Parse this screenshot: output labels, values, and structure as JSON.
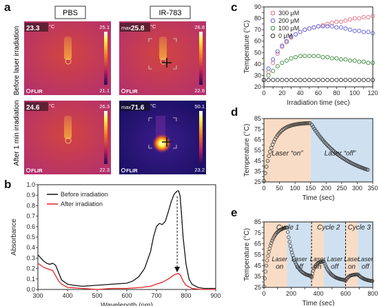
{
  "panels": [
    "a",
    "b",
    "c",
    "d",
    "e"
  ],
  "panel_a": {
    "col_titles": [
      "PBS",
      "IR-783"
    ],
    "row_titles": [
      "Before laser irradiation",
      "After 1 min irradiation"
    ],
    "unit": "°C",
    "brand": "FLIR",
    "max_tag": "max",
    "images": [
      {
        "reading": "23.3",
        "scale_max": "25.1",
        "scale_min": "21.1",
        "has_max": false,
        "style": "warm"
      },
      {
        "reading": "25.8",
        "scale_max": "26.8",
        "scale_min": "22.8",
        "has_max": true,
        "style": "warm"
      },
      {
        "reading": "24.6",
        "scale_max": "26.3",
        "scale_min": "22.3",
        "has_max": false,
        "style": "warm"
      },
      {
        "reading": "71.6",
        "scale_max": "50.1",
        "scale_min": "23.2",
        "has_max": true,
        "style": "hot"
      }
    ]
  },
  "colors": {
    "black": "#111111",
    "red": "#e32222",
    "c300": "#e06a7a",
    "c200": "#5b5fd6",
    "c100": "#3a8a3a",
    "c0": "#333333",
    "laser_on": "#f8dcc6",
    "laser_off": "#cfe0f0",
    "on_text": "#d40000",
    "off_text": "#1a6fc4"
  },
  "chart_data": [
    {
      "panel": "b",
      "type": "line",
      "xlabel": "Wavelength (nm)",
      "ylabel": "Absorbance",
      "xlim": [
        300,
        900
      ],
      "ylim": [
        0,
        1.0
      ],
      "xticks": [
        300,
        400,
        500,
        600,
        700,
        800,
        900
      ],
      "yticks": [
        0.0,
        0.1,
        0.2,
        0.3,
        0.4,
        0.5,
        0.6,
        0.7,
        0.8,
        0.9,
        1.0
      ],
      "series": [
        {
          "name": "Before irradiation",
          "color": "#111111",
          "x": [
            300,
            310,
            320,
            330,
            340,
            350,
            360,
            370,
            380,
            400,
            420,
            450,
            500,
            550,
            600,
            620,
            640,
            660,
            680,
            690,
            700,
            710,
            720,
            730,
            740,
            750,
            760,
            770,
            775,
            780,
            785,
            790,
            800,
            810,
            820,
            840,
            860,
            880,
            900
          ],
          "y": [
            0.33,
            0.3,
            0.27,
            0.25,
            0.24,
            0.25,
            0.23,
            0.16,
            0.09,
            0.05,
            0.04,
            0.03,
            0.04,
            0.05,
            0.06,
            0.08,
            0.12,
            0.2,
            0.36,
            0.5,
            0.6,
            0.63,
            0.62,
            0.65,
            0.74,
            0.84,
            0.91,
            0.94,
            0.94,
            0.89,
            0.7,
            0.5,
            0.24,
            0.1,
            0.05,
            0.02,
            0.01,
            0.01,
            0.01
          ]
        },
        {
          "name": "After irradiation",
          "color": "#e32222",
          "x": [
            300,
            310,
            320,
            330,
            340,
            350,
            360,
            370,
            380,
            400,
            450,
            500,
            550,
            600,
            650,
            680,
            700,
            720,
            740,
            750,
            760,
            770,
            775,
            780,
            790,
            800,
            820,
            850,
            900
          ],
          "y": [
            0.25,
            0.23,
            0.21,
            0.2,
            0.19,
            0.18,
            0.13,
            0.08,
            0.05,
            0.02,
            0.01,
            0.0,
            0.01,
            0.01,
            0.02,
            0.03,
            0.05,
            0.07,
            0.1,
            0.12,
            0.14,
            0.15,
            0.15,
            0.14,
            0.08,
            0.04,
            0.01,
            0.0,
            0.0
          ]
        }
      ],
      "annotation": "arrow 770 nm"
    },
    {
      "panel": "c",
      "type": "scatter",
      "xlabel": "Irradiation time (sec)",
      "ylabel": "Temperature (°C)",
      "xlim": [
        0,
        120
      ],
      "ylim": [
        20,
        90
      ],
      "xticks": [
        0,
        10,
        20,
        30,
        40,
        50,
        60,
        70,
        80,
        90,
        100,
        110,
        120
      ],
      "yticks": [
        20,
        25,
        30,
        35,
        40,
        45,
        50,
        55,
        60,
        65,
        70,
        75,
        80,
        85,
        90
      ],
      "x": [
        0,
        5,
        10,
        15,
        20,
        25,
        30,
        35,
        40,
        45,
        50,
        55,
        60,
        65,
        70,
        75,
        80,
        85,
        90,
        95,
        100,
        105,
        110,
        115,
        120
      ],
      "series": [
        {
          "name": "300 μM",
          "color": "#e06a7a",
          "values": [
            26,
            33,
            41,
            49,
            55,
            59,
            63,
            66,
            68,
            70,
            71,
            72,
            73,
            74,
            75,
            76,
            77,
            77,
            78,
            79,
            80,
            80,
            81,
            81,
            82
          ]
        },
        {
          "name": "200 μM",
          "color": "#5b5fd6",
          "values": [
            26,
            36,
            44,
            51,
            56,
            60,
            64,
            66,
            68,
            70,
            71,
            72,
            73,
            73,
            73,
            73,
            72,
            72,
            71,
            70,
            69,
            69,
            68,
            68,
            67
          ]
        },
        {
          "name": "100 μM",
          "color": "#3a8a3a",
          "values": [
            26,
            30,
            34,
            38,
            41,
            43,
            45,
            46,
            47,
            47,
            47,
            47,
            47,
            46,
            46,
            45,
            45,
            44,
            44,
            43,
            43,
            42,
            42,
            41,
            41
          ]
        },
        {
          "name": "0 μM",
          "color": "#333333",
          "values": [
            26,
            26,
            26,
            26,
            26,
            26,
            26,
            26,
            26,
            26,
            26,
            26,
            26,
            26,
            26,
            26,
            26,
            26,
            26,
            26,
            26,
            26,
            26,
            26,
            26
          ]
        }
      ]
    },
    {
      "panel": "d",
      "type": "scatter",
      "xlabel": "Time (sec)",
      "ylabel": "Temperature (°C)",
      "xlim": [
        0,
        350
      ],
      "ylim": [
        25,
        85
      ],
      "xticks": [
        0,
        50,
        100,
        150,
        200,
        250,
        300,
        350
      ],
      "yticks": [
        25,
        30,
        35,
        40,
        45,
        50,
        55,
        60,
        65,
        70,
        75,
        80,
        85
      ],
      "switch_time": 150,
      "on_label": "Laser “on”",
      "off_label": "Laser “off”",
      "heating": {
        "start": 26,
        "end": 81,
        "rate": 0.035,
        "t_end": 150
      },
      "cooling": {
        "start": 81,
        "end": 26,
        "rate": 0.009,
        "t_start": 150,
        "t_end": 335
      },
      "color": "#333333"
    },
    {
      "panel": "e",
      "type": "scatter",
      "xlabel": "Time (sec)",
      "ylabel": "Temperature (°C)",
      "xlim": [
        0,
        800
      ],
      "ylim": [
        25,
        85
      ],
      "xticks": [
        0,
        100,
        200,
        300,
        400,
        500,
        600,
        700,
        800
      ],
      "yticks": [
        25,
        30,
        35,
        40,
        45,
        50,
        55,
        60,
        65,
        70,
        75,
        80,
        85
      ],
      "dividers": [
        350,
        600
      ],
      "cycles": [
        {
          "name": "Cycle 1",
          "on_start": 0,
          "on_end": 170,
          "off_end": 350,
          "peak": 81,
          "base": 26
        },
        {
          "name": "Cycle 2",
          "on_start": 350,
          "on_end": 440,
          "off_end": 600,
          "peak": 49,
          "base": 34
        },
        {
          "name": "Cycle 3",
          "on_start": 600,
          "on_end": 690,
          "off_end": 800,
          "peak": 37,
          "base": 31
        }
      ],
      "laser_word": "Laser",
      "on_word": "on",
      "off_word": "off",
      "color": "#333333"
    }
  ]
}
